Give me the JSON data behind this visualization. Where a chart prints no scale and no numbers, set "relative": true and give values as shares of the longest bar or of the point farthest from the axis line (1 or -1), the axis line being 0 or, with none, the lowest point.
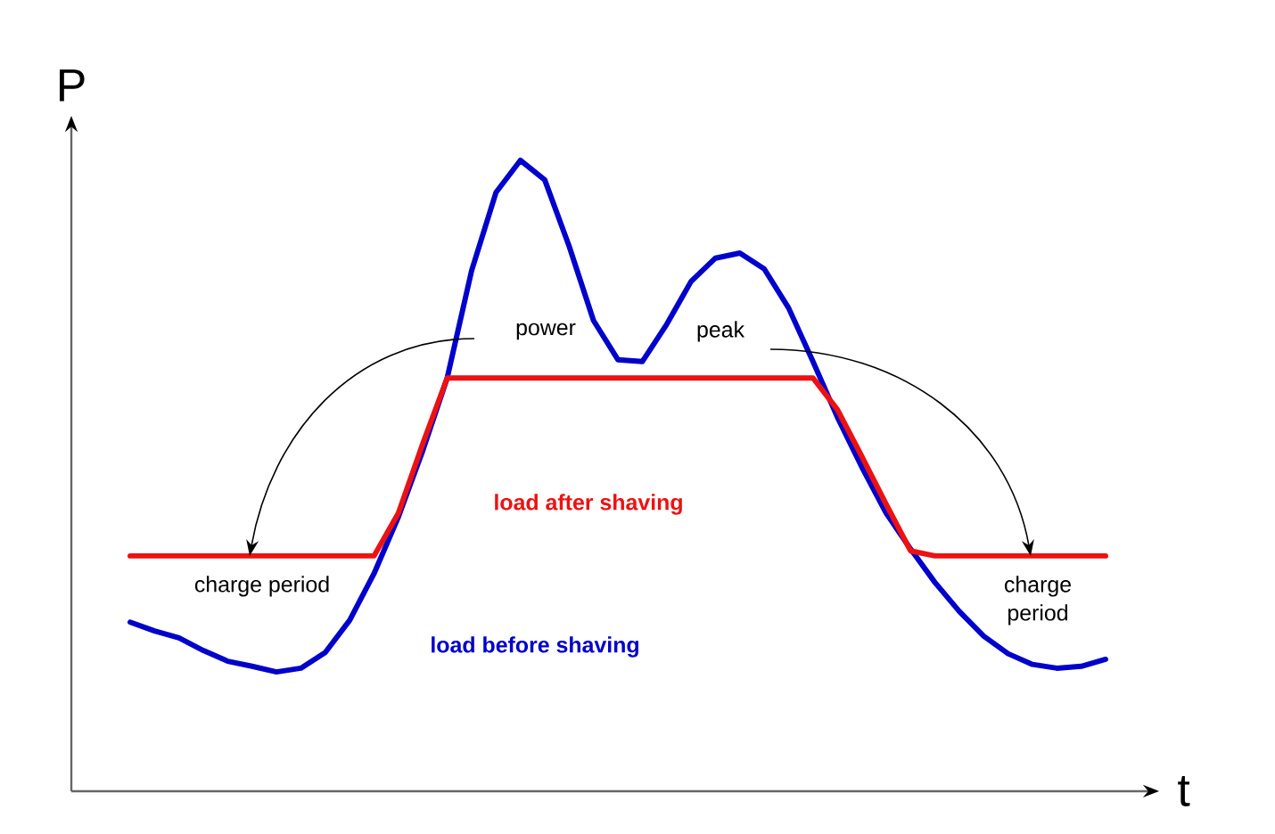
{
  "chart_data": {
    "type": "line",
    "relative": true,
    "xlabel": "t",
    "ylabel": "P",
    "categories": [
      null,
      null,
      null,
      null,
      null,
      null,
      null,
      null,
      null,
      null,
      null,
      null,
      null,
      null,
      null,
      null,
      null,
      null,
      null,
      null,
      null,
      null,
      null,
      null,
      null,
      null,
      null,
      null,
      null,
      null,
      null,
      null,
      null,
      null,
      null,
      null,
      null,
      null,
      null,
      null,
      null
    ],
    "series": [
      {
        "name": "load before shaving",
        "color": "#0000cc",
        "values": [
          0.268,
          0.254,
          0.243,
          0.223,
          0.206,
          0.198,
          0.189,
          0.195,
          0.22,
          0.271,
          0.345,
          0.435,
          0.54,
          0.655,
          0.825,
          0.949,
          1,
          0.969,
          0.864,
          0.746,
          0.684,
          0.681,
          0.74,
          0.808,
          0.845,
          0.853,
          0.828,
          0.766,
          0.681,
          0.593,
          0.514,
          0.441,
          0.384,
          0.331,
          0.285,
          0.246,
          0.218,
          0.201,
          0.195,
          0.198,
          0.209
        ]
      },
      {
        "name": "load after shaving",
        "color": "#ee1111",
        "values": [
          0.373,
          0.373,
          0.373,
          0.373,
          0.373,
          0.373,
          0.373,
          0.373,
          0.373,
          0.373,
          0.373,
          0.441,
          0.551,
          0.655,
          0.655,
          0.655,
          0.655,
          0.655,
          0.655,
          0.655,
          0.655,
          0.655,
          0.655,
          0.655,
          0.655,
          0.655,
          0.655,
          0.655,
          0.655,
          0.605,
          0.531,
          0.455,
          0.381,
          0.373,
          0.373,
          0.373,
          0.373,
          0.373,
          0.373,
          0.373,
          0.373
        ]
      }
    ],
    "annotations": [
      "power",
      "peak",
      "charge period",
      "charge period"
    ]
  }
}
